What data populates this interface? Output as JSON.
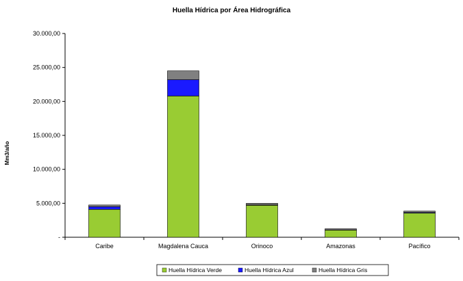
{
  "chart_data": {
    "type": "bar",
    "stacked": true,
    "title": "Huella Hídrica por Área Hidrográfica",
    "xlabel": "",
    "ylabel": "Mm3/año",
    "categories": [
      "Caribe",
      "Magdalena Cauca",
      "Orinoco",
      "Amazonas",
      "Pacífico"
    ],
    "ylim": [
      0,
      30000
    ],
    "yticks": [
      0,
      5000,
      10000,
      15000,
      20000,
      25000,
      30000
    ],
    "ytick_labels": [
      "-",
      "5.000,00",
      "10.000,00",
      "15.000,00",
      "20.000,00",
      "25.000,00",
      "30.000,00"
    ],
    "grid": false,
    "legend_position": "bottom",
    "series": [
      {
        "name": "Huella Hídrica Verde",
        "color": "#99cc33",
        "values": [
          4100,
          20800,
          4700,
          1050,
          3550
        ]
      },
      {
        "name": "Huella Hídrica Azul",
        "color": "#1a1aff",
        "values": [
          400,
          2400,
          60,
          30,
          90
        ]
      },
      {
        "name": "Huella Hídrica Gris",
        "color": "#808080",
        "values": [
          250,
          1300,
          240,
          170,
          210
        ]
      }
    ]
  }
}
